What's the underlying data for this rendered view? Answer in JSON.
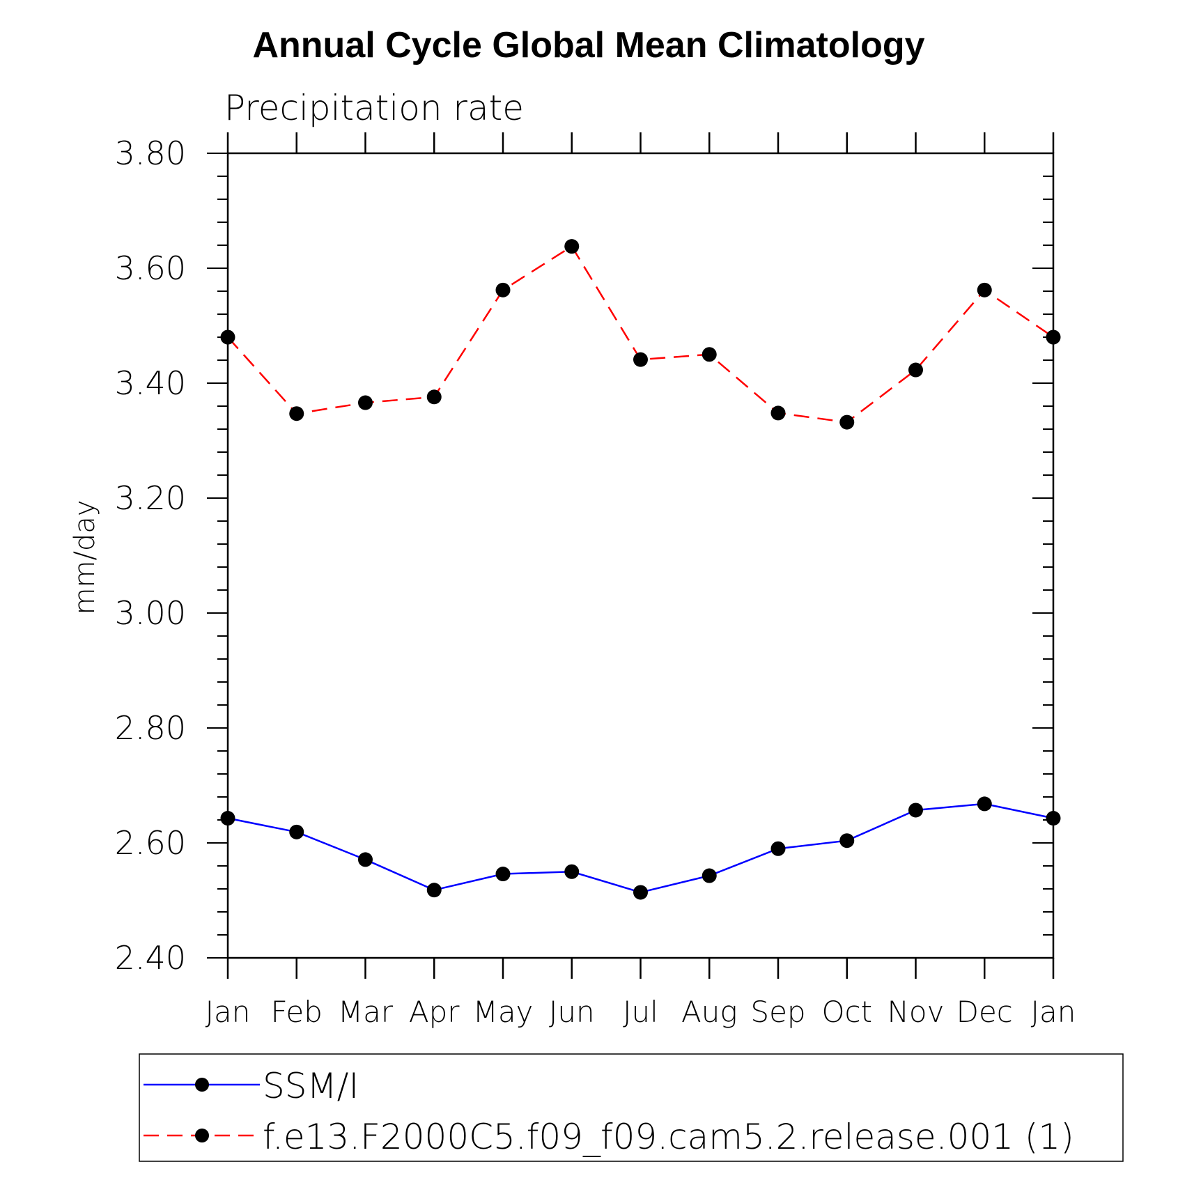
{
  "chart_data": {
    "type": "line",
    "title": "Annual Cycle Global Mean Climatology",
    "subtitle": "Precipitation rate",
    "xlabel": "",
    "ylabel": "mm/day",
    "categories": [
      "Jan",
      "Feb",
      "Mar",
      "Apr",
      "May",
      "Jun",
      "Jul",
      "Aug",
      "Sep",
      "Oct",
      "Nov",
      "Dec",
      "Jan"
    ],
    "ylim": [
      2.4,
      3.8
    ],
    "yticks": [
      "2.40",
      "2.60",
      "2.80",
      "3.00",
      "3.20",
      "3.40",
      "3.60",
      "3.80"
    ],
    "grid": false,
    "legend_position": "bottom",
    "series": [
      {
        "name": "SSM/I",
        "color": "#0000ff",
        "line_style": "solid",
        "marker": "filled-circle",
        "values": [
          2.643,
          2.619,
          2.571,
          2.518,
          2.546,
          2.55,
          2.514,
          2.543,
          2.59,
          2.604,
          2.657,
          2.668,
          2.643
        ]
      },
      {
        "name": "f.e13.F2000C5.f09_f09.cam5.2.release.001 (1)",
        "color": "#ff0000",
        "line_style": "dashed",
        "marker": "filled-circle",
        "values": [
          3.48,
          3.347,
          3.366,
          3.376,
          3.562,
          3.638,
          3.441,
          3.45,
          3.348,
          3.332,
          3.423,
          3.562,
          3.48
        ]
      }
    ]
  }
}
